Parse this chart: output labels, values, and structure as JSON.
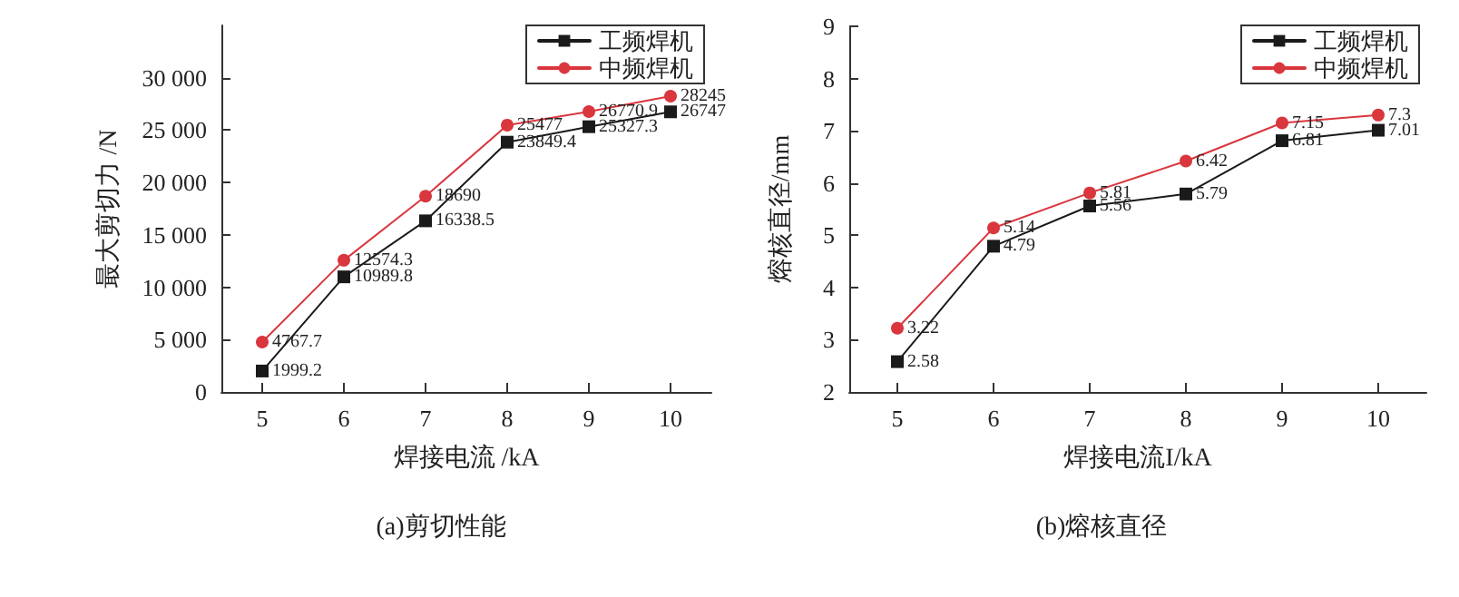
{
  "chart_data": [
    {
      "type": "line",
      "title": "(a)剪切性能",
      "xlabel": "焊接电流 /kA",
      "ylabel": "最大剪切力 /N",
      "x": [
        5,
        6,
        7,
        8,
        9,
        10
      ],
      "xlim": [
        4.5,
        10.5
      ],
      "xticks": [
        5,
        6,
        7,
        8,
        9,
        10
      ],
      "ylim": [
        0,
        35000
      ],
      "yticks": [
        0,
        {
          "value": 5000,
          "label": "5 000"
        },
        {
          "value": 10000,
          "label": "10 000"
        },
        {
          "value": 15000,
          "label": "15 000"
        },
        {
          "value": 20000,
          "label": "20 000"
        },
        {
          "value": 25000,
          "label": "25 000"
        },
        {
          "value": 30000,
          "label": "30 000"
        }
      ],
      "legend": "top right",
      "data_labels": true,
      "grid": false,
      "series": [
        {
          "name": "工频焊机",
          "color": "#1a1a1a",
          "marker": "square",
          "values": [
            1999.2,
            10989.8,
            16338.5,
            23849.4,
            25327.3,
            26747
          ]
        },
        {
          "name": "中频焊机",
          "color": "#d9363e",
          "marker": "circle",
          "values": [
            4767.7,
            12574.3,
            18690,
            25477,
            26770.9,
            28245
          ]
        }
      ]
    },
    {
      "type": "line",
      "title": "(b)熔核直径",
      "xlabel": "焊接电流I/kA",
      "ylabel": "熔核直径/mm",
      "x": [
        5,
        6,
        7,
        8,
        9,
        10
      ],
      "xlim": [
        4.5,
        10.5
      ],
      "xticks": [
        5,
        6,
        7,
        8,
        9,
        10
      ],
      "ylim": [
        2,
        9
      ],
      "yticks": [
        2,
        3,
        4,
        5,
        6,
        7,
        8,
        9
      ],
      "legend": "top right",
      "data_labels": true,
      "grid": false,
      "series": [
        {
          "name": "工频焊机",
          "color": "#1a1a1a",
          "marker": "square",
          "values": [
            2.58,
            4.79,
            5.56,
            5.79,
            6.81,
            7.01
          ]
        },
        {
          "name": "中频焊机",
          "color": "#d9363e",
          "marker": "circle",
          "values": [
            3.22,
            5.14,
            5.81,
            6.42,
            7.15,
            7.3
          ]
        }
      ]
    }
  ]
}
